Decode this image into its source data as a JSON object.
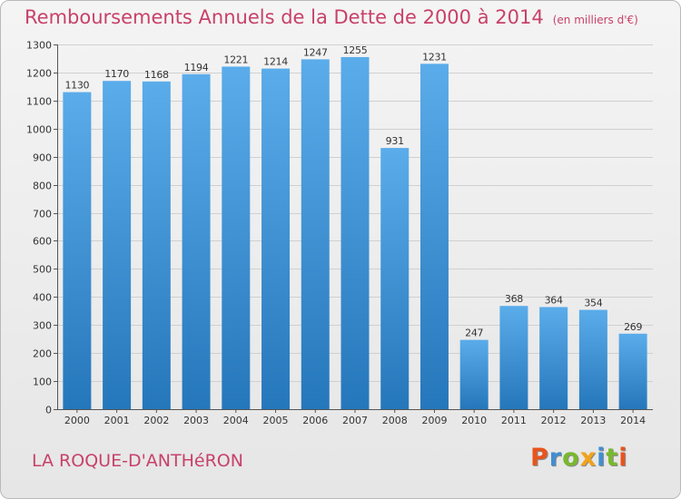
{
  "header": {
    "title": "Remboursements Annuels de la Dette de 2000 à 2014",
    "unit": "(en milliers d'€)"
  },
  "footer": {
    "commune": "LA ROQUE-D'ANTHéRON",
    "logo_text": "Proxiti"
  },
  "colors": {
    "title": "#c8416a",
    "bar_top": "#5aacea",
    "bar_bottom": "#2577bb",
    "grid": "#d0d0d0",
    "logo": [
      "#e8541e",
      "#3f8fd2",
      "#79b82e",
      "#f2a31a",
      "#3f8fd2",
      "#79b82e",
      "#e8541e"
    ]
  },
  "chart_data": {
    "type": "bar",
    "title": "Remboursements Annuels de la Dette de 2000 à 2014",
    "xlabel": "",
    "ylabel": "",
    "ylim": [
      0,
      1300
    ],
    "ytick_step": 100,
    "grid": true,
    "categories": [
      "2000",
      "2001",
      "2002",
      "2003",
      "2004",
      "2005",
      "2006",
      "2007",
      "2008",
      "2009",
      "2010",
      "2011",
      "2012",
      "2013",
      "2014"
    ],
    "values": [
      1130,
      1170,
      1168,
      1194,
      1221,
      1214,
      1247,
      1255,
      931,
      1231,
      247,
      368,
      364,
      354,
      269
    ]
  }
}
